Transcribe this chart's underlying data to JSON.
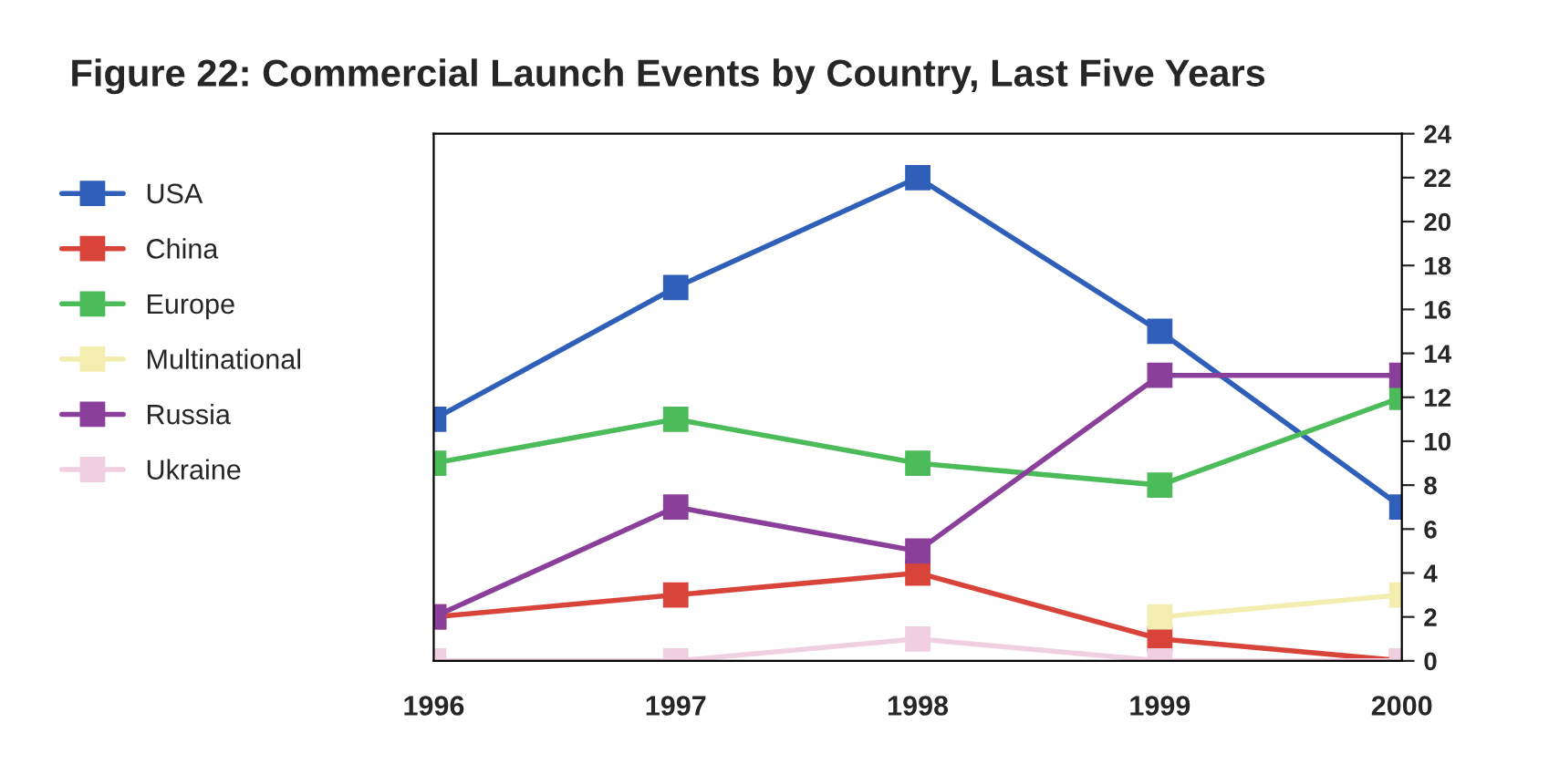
{
  "chart_data": {
    "type": "line",
    "title": "Figure 22: Commercial Launch Events by Country, Last Five Years",
    "categories": [
      "1996",
      "1997",
      "1998",
      "1999",
      "2000"
    ],
    "series": [
      {
        "name": "USA",
        "color": "#2f5fb8",
        "values": [
          11,
          17,
          22,
          15,
          7
        ]
      },
      {
        "name": "China",
        "color": "#d9443a",
        "values": [
          2,
          3,
          4,
          1,
          0
        ]
      },
      {
        "name": "Europe",
        "color": "#4cbb5a",
        "values": [
          9,
          11,
          9,
          8,
          12
        ]
      },
      {
        "name": "Multinational",
        "color": "#f3eeb0",
        "values": [
          null,
          null,
          null,
          2,
          3
        ]
      },
      {
        "name": "Russia",
        "color": "#8a3f9a",
        "values": [
          2,
          7,
          5,
          13,
          13
        ]
      },
      {
        "name": "Ukraine",
        "color": "#f0d0e0",
        "values": [
          0,
          0,
          1,
          0,
          0
        ]
      }
    ],
    "ylim": [
      0,
      24
    ],
    "yticks": [
      0,
      2,
      4,
      6,
      8,
      10,
      12,
      14,
      16,
      18,
      20,
      22,
      24
    ],
    "marker": "square",
    "line_style": "solid",
    "grid": false,
    "legend": "left"
  }
}
